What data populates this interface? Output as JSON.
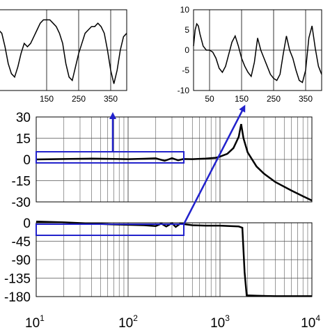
{
  "chart_data": [
    {
      "type": "line",
      "panel": "inset-left",
      "xlim": [
        0,
        400
      ],
      "xticks": [
        "150",
        "250",
        "350"
      ],
      "xtick_values": [
        150,
        250,
        350
      ],
      "grid": true,
      "series": [
        {
          "x": [
            0,
            10,
            20,
            30,
            40,
            50,
            60,
            70,
            80,
            90,
            100,
            110,
            120,
            130,
            140,
            150,
            160,
            170,
            180,
            190,
            200,
            210,
            220,
            230,
            240,
            250,
            260,
            270,
            280,
            290,
            300,
            310,
            320,
            330,
            340,
            350,
            360,
            370,
            380,
            390,
            400
          ],
          "y": [
            6,
            5,
            1,
            -4,
            -7,
            -8,
            -5,
            -1,
            2,
            1,
            2,
            4,
            6,
            8,
            9,
            9,
            9,
            8,
            7,
            5,
            2,
            -4,
            -8,
            -9,
            -5,
            -1,
            2,
            5,
            6,
            7,
            7,
            8,
            7,
            5,
            0,
            -6,
            -10,
            -6,
            0,
            4,
            5
          ]
        }
      ]
    },
    {
      "type": "line",
      "panel": "inset-right",
      "xlim": [
        0,
        400
      ],
      "ylim": [
        -10,
        10
      ],
      "yticks": [
        "10",
        "5",
        "0",
        "-5",
        "-10"
      ],
      "ytick_values": [
        10,
        5,
        0,
        -5,
        -10
      ],
      "xticks": [
        "50",
        "150",
        "250",
        "350"
      ],
      "xtick_values": [
        50,
        150,
        250,
        350
      ],
      "grid": true,
      "series": [
        {
          "x": [
            0,
            5,
            10,
            15,
            20,
            30,
            40,
            50,
            60,
            70,
            80,
            90,
            100,
            110,
            120,
            130,
            140,
            150,
            160,
            170,
            180,
            190,
            200,
            210,
            220,
            230,
            240,
            250,
            260,
            270,
            280,
            290,
            300,
            310,
            320,
            330,
            340,
            350,
            360,
            370,
            380,
            390,
            400
          ],
          "y": [
            1,
            5,
            6.5,
            6,
            4,
            1,
            0,
            0,
            -0.5,
            -2,
            -4.5,
            -5.5,
            -4,
            -1,
            2,
            3.5,
            1,
            -2,
            -4,
            -5.5,
            -6.5,
            -3,
            3,
            0,
            -2,
            -4,
            -6,
            -7,
            -7.5,
            -6,
            -1,
            3.5,
            0,
            -2,
            -5,
            -7.5,
            -8,
            -5,
            3,
            6,
            0.5,
            -4,
            -6
          ]
        }
      ]
    },
    {
      "type": "line",
      "panel": "magnitude",
      "xscale": "log",
      "xlim": [
        10,
        10000
      ],
      "ylim": [
        -30,
        30
      ],
      "yticks": [
        "30",
        "15",
        "0",
        "-15",
        "-30"
      ],
      "ytick_values": [
        30,
        15,
        0,
        -15,
        -30
      ],
      "grid": true,
      "series": [
        {
          "x": [
            10,
            20,
            40,
            70,
            100,
            150,
            200,
            250,
            300,
            350,
            400,
            500,
            700,
            900,
            1000,
            1200,
            1400,
            1600,
            1700,
            1800,
            2000,
            2500,
            3000,
            4000,
            6000,
            8000,
            10000
          ],
          "y": [
            0,
            0.3,
            0.6,
            0.4,
            0.2,
            0.5,
            0.8,
            -1.0,
            0.9,
            -0.6,
            0.3,
            0.2,
            0.6,
            1.2,
            2.0,
            4.0,
            8.0,
            16.0,
            25.0,
            15.0,
            5.0,
            -5.0,
            -10.0,
            -16.0,
            -22.0,
            -26.0,
            -29.0
          ]
        }
      ]
    },
    {
      "type": "line",
      "panel": "phase",
      "xscale": "log",
      "xlim": [
        10,
        10000
      ],
      "ylim": [
        -180,
        0
      ],
      "yticks": [
        "0",
        "-45",
        "-90",
        "-135",
        "-180"
      ],
      "ytick_values": [
        0,
        -45,
        -90,
        -135,
        -180
      ],
      "xticks": [
        "10",
        "10",
        "10",
        "10"
      ],
      "xtick_exponents": [
        "1",
        "2",
        "3",
        "4"
      ],
      "xtick_values": [
        10,
        100,
        1000,
        10000
      ],
      "grid": true,
      "series": [
        {
          "x": [
            10,
            20,
            40,
            70,
            100,
            150,
            200,
            230,
            260,
            300,
            330,
            370,
            500,
            700,
            1000,
            1300,
            1600,
            1750,
            1850,
            1950,
            2500,
            4000,
            10000
          ],
          "y": [
            3,
            1,
            -2,
            -4,
            -5,
            -6,
            -8,
            -2,
            -9,
            -1,
            -10,
            -2,
            -6,
            -7,
            -7,
            -8,
            -9,
            -12,
            -120,
            -177,
            -178,
            -179,
            -179
          ]
        }
      ]
    }
  ]
}
